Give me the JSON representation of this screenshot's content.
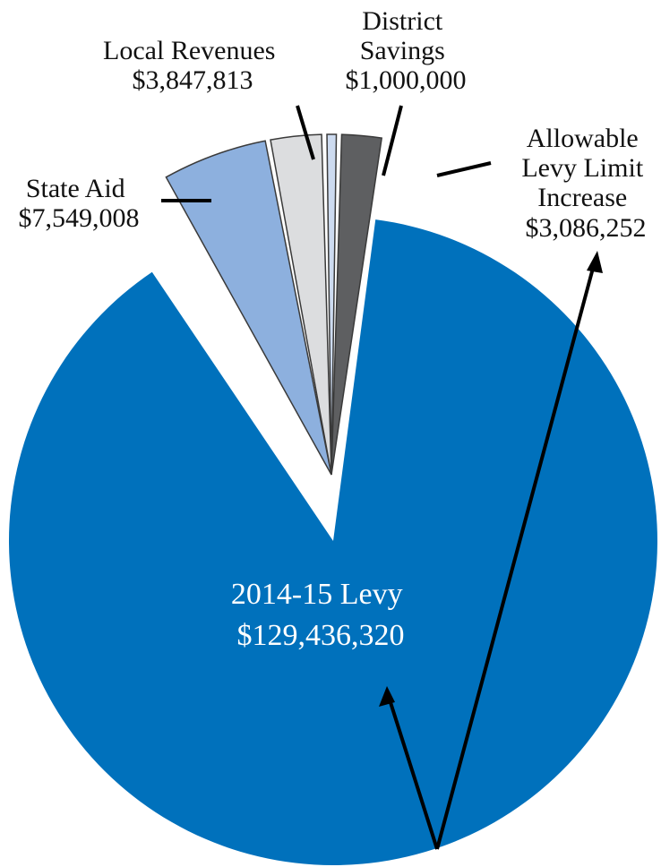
{
  "chart_data": {
    "type": "pie",
    "slices": [
      {
        "name": "2014-15 Levy",
        "value": 129436320,
        "label": "$129,436,320",
        "color": "#0071bc"
      },
      {
        "name": "State Aid",
        "value": 7549008,
        "label": "$7,549,008",
        "color": "#8db0de"
      },
      {
        "name": "Local Revenues",
        "value": 3847813,
        "label": "$3,847,813",
        "color": "#dcdddf"
      },
      {
        "name": "District Savings",
        "value": 1000000,
        "label": "$1,000,000",
        "color": "#cddbf0"
      },
      {
        "name": "Allowable Levy Limit Increase",
        "value": 3086252,
        "label": "$3,086,252",
        "color": "#5e5f61"
      }
    ],
    "labels": {
      "levy": {
        "line1": "2014-15 Levy",
        "line2": "$129,436,320"
      },
      "state_aid": {
        "line1": "State Aid",
        "line2": "$7,549,008"
      },
      "local_revenues": {
        "line1": "Local Revenues",
        "line2": "$3,847,813"
      },
      "district_savings": {
        "line1": "District",
        "line2": "Savings",
        "line3": "$1,000,000"
      },
      "levy_limit": {
        "line1": "Allowable",
        "line2": "Levy Limit",
        "line3": "Increase",
        "line4": "$3,086,252"
      }
    }
  }
}
